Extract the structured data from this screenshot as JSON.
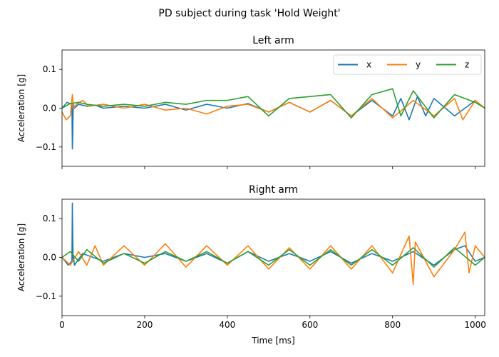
{
  "figure": {
    "suptitle": "PD subject during task 'Hold Weight'"
  },
  "chart_data": [
    {
      "type": "line",
      "title": "Left arm",
      "xlabel": "",
      "ylabel": "Acceleration [g]",
      "xlim": [
        0,
        1023
      ],
      "ylim": [
        -0.15,
        0.15
      ],
      "xticks": [
        0,
        200,
        400,
        600,
        800,
        1000
      ],
      "xticklabels_visible": false,
      "yticks": [
        -0.1,
        0.0,
        0.1
      ],
      "yticklabels": [
        "−0.1",
        "0.0",
        "0.1"
      ],
      "legend": {
        "placement": "top-right",
        "columns": 3
      },
      "grid": false,
      "series": [
        {
          "name": "x",
          "color": "#1f77b4",
          "x": [
            0,
            12,
            24,
            25,
            26,
            27,
            28,
            30,
            40,
            60,
            80,
            100,
            150,
            200,
            250,
            300,
            350,
            400,
            450,
            500,
            550,
            600,
            650,
            700,
            750,
            800,
            820,
            840,
            860,
            880,
            900,
            950,
            1000,
            1023
          ],
          "y": [
            0.0,
            0.015,
            0.01,
            -0.105,
            -0.07,
            0.0,
            0.01,
            0.0,
            0.01,
            0.005,
            0.008,
            0.0,
            0.005,
            0.0,
            0.01,
            -0.005,
            0.01,
            0.0,
            0.012,
            -0.01,
            0.015,
            -0.01,
            0.02,
            -0.02,
            0.02,
            -0.02,
            0.025,
            -0.03,
            0.03,
            -0.02,
            0.025,
            -0.02,
            0.02,
            0.0
          ]
        },
        {
          "name": "y",
          "color": "#ff7f0e",
          "x": [
            0,
            10,
            20,
            25,
            28,
            35,
            50,
            65,
            100,
            150,
            200,
            250,
            300,
            350,
            400,
            450,
            500,
            550,
            600,
            650,
            700,
            750,
            800,
            850,
            900,
            950,
            970,
            1000,
            1023
          ],
          "y": [
            -0.01,
            -0.03,
            -0.02,
            0.035,
            0.0,
            0.01,
            0.02,
            0.005,
            0.01,
            0.0,
            0.01,
            -0.005,
            0.0,
            -0.015,
            0.005,
            0.01,
            -0.01,
            0.015,
            -0.01,
            0.02,
            -0.02,
            0.025,
            -0.025,
            0.02,
            -0.02,
            0.025,
            -0.03,
            0.02,
            0.0
          ]
        },
        {
          "name": "z",
          "color": "#2ca02c",
          "x": [
            0,
            20,
            40,
            60,
            100,
            150,
            200,
            250,
            300,
            350,
            400,
            450,
            500,
            550,
            600,
            650,
            700,
            750,
            800,
            820,
            850,
            900,
            950,
            1000,
            1023
          ],
          "y": [
            0.0,
            0.012,
            0.015,
            0.01,
            0.005,
            0.01,
            0.005,
            0.015,
            0.01,
            0.02,
            0.02,
            0.03,
            -0.02,
            0.025,
            0.03,
            0.035,
            -0.025,
            0.035,
            0.05,
            -0.02,
            0.045,
            -0.025,
            0.035,
            0.015,
            0.0
          ]
        }
      ]
    },
    {
      "type": "line",
      "title": "Right arm",
      "xlabel": "Time [ms]",
      "ylabel": "Acceleration [g]",
      "xlim": [
        0,
        1023
      ],
      "ylim": [
        -0.15,
        0.15
      ],
      "xticks": [
        0,
        200,
        400,
        600,
        800,
        1000
      ],
      "xticklabels_visible": true,
      "xticklabels": [
        "0",
        "200",
        "400",
        "600",
        "800",
        "1000"
      ],
      "yticks": [
        -0.1,
        0.0,
        0.1
      ],
      "yticklabels": [
        "−0.1",
        "0.0",
        "0.1"
      ],
      "legend": null,
      "grid": false,
      "series": [
        {
          "name": "x",
          "color": "#1f77b4",
          "x": [
            0,
            15,
            24,
            25,
            26,
            27,
            28,
            30,
            50,
            100,
            150,
            200,
            250,
            300,
            350,
            400,
            450,
            500,
            550,
            600,
            650,
            700,
            750,
            800,
            850,
            900,
            950,
            975,
            1000,
            1023
          ],
          "y": [
            0.0,
            -0.02,
            -0.01,
            0.14,
            0.05,
            -0.01,
            0.0,
            -0.02,
            0.01,
            -0.01,
            0.01,
            0.0,
            0.01,
            -0.01,
            0.01,
            -0.015,
            0.015,
            -0.01,
            0.01,
            -0.01,
            0.015,
            -0.015,
            0.01,
            -0.01,
            0.015,
            -0.02,
            0.02,
            0.03,
            -0.01,
            0.0
          ]
        },
        {
          "name": "y",
          "color": "#ff7f0e",
          "x": [
            0,
            20,
            40,
            60,
            80,
            100,
            150,
            200,
            250,
            300,
            350,
            400,
            450,
            500,
            550,
            600,
            650,
            700,
            750,
            800,
            840,
            850,
            855,
            900,
            950,
            975,
            985,
            1000,
            1023
          ],
          "y": [
            0.0,
            -0.02,
            0.015,
            -0.02,
            0.03,
            -0.02,
            0.03,
            -0.02,
            0.035,
            -0.025,
            0.03,
            -0.02,
            0.03,
            -0.03,
            0.025,
            -0.03,
            0.03,
            -0.03,
            0.03,
            -0.04,
            0.055,
            -0.07,
            0.04,
            -0.05,
            0.02,
            0.065,
            -0.04,
            0.03,
            0.0
          ]
        },
        {
          "name": "z",
          "color": "#2ca02c",
          "x": [
            0,
            20,
            40,
            60,
            100,
            150,
            200,
            250,
            300,
            350,
            400,
            450,
            500,
            550,
            600,
            650,
            700,
            750,
            800,
            850,
            900,
            950,
            1000,
            1023
          ],
          "y": [
            0.0,
            0.015,
            -0.01,
            0.02,
            -0.015,
            0.01,
            -0.015,
            0.015,
            -0.01,
            0.015,
            -0.015,
            0.015,
            -0.02,
            0.02,
            -0.02,
            0.02,
            -0.02,
            0.02,
            -0.02,
            0.025,
            -0.025,
            0.025,
            -0.02,
            0.0
          ]
        }
      ]
    }
  ]
}
